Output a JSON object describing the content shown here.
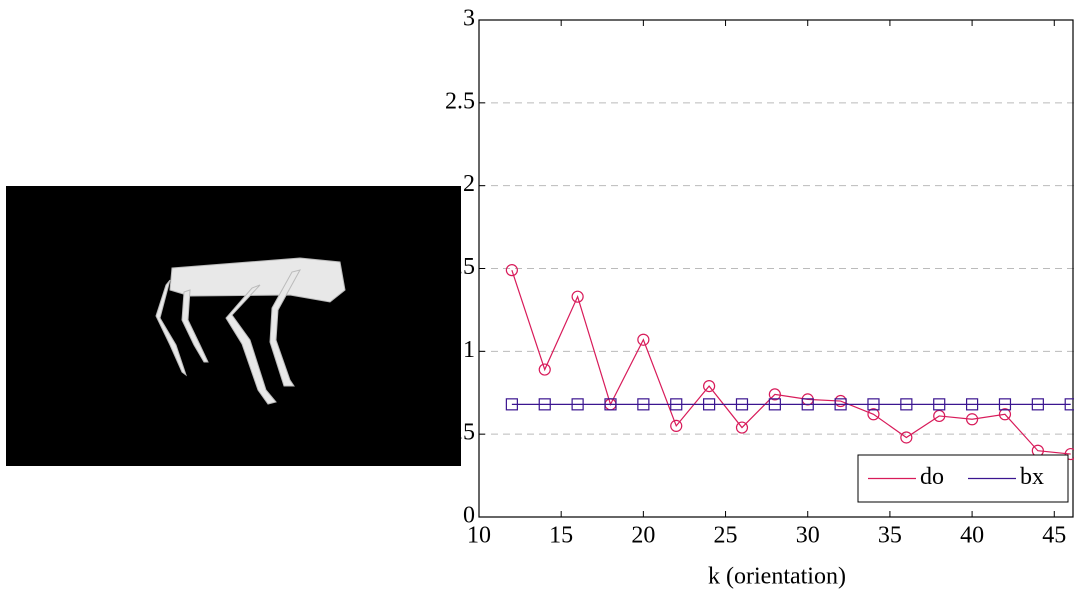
{
  "chart_data": {
    "type": "line",
    "xlabel": "k (orientation)",
    "xlim": [
      10,
      46.2
    ],
    "ylim": [
      0,
      3
    ],
    "xticks": [
      10,
      15,
      20,
      25,
      30,
      35,
      40,
      45
    ],
    "yticks": [
      0,
      0.5,
      1,
      1.5,
      2,
      2.5,
      3
    ],
    "grid": true,
    "legend": "lower right",
    "x": [
      12,
      14,
      16,
      18,
      20,
      22,
      24,
      26,
      28,
      30,
      32,
      34,
      36,
      38,
      40,
      42,
      44,
      46
    ],
    "series": [
      {
        "name": "do",
        "color": "#d81b5a",
        "marker": "circle",
        "values": [
          1.49,
          0.89,
          1.33,
          0.68,
          1.07,
          0.55,
          0.79,
          0.54,
          0.74,
          0.71,
          0.7,
          0.62,
          0.48,
          0.61,
          0.59,
          0.62,
          0.4,
          0.38
        ]
      },
      {
        "name": "bx",
        "color": "#3b1590",
        "marker": "square",
        "values": [
          0.68,
          0.68,
          0.68,
          0.68,
          0.68,
          0.68,
          0.68,
          0.68,
          0.68,
          0.68,
          0.68,
          0.68,
          0.68,
          0.68,
          0.68,
          0.68,
          0.68,
          0.68
        ]
      }
    ]
  }
}
